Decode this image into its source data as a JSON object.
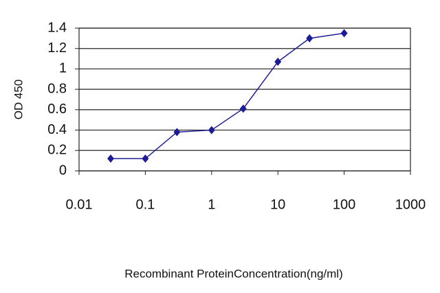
{
  "chart_data": {
    "type": "line",
    "xscale": "log",
    "xlabel": "Recombinant ProteinConcentration(ng/ml)",
    "ylabel": "OD 450",
    "x": [
      0.03,
      0.1,
      0.3,
      1,
      3,
      10,
      30,
      100
    ],
    "series": [
      {
        "name": "OD 450",
        "color": "#1c1c96",
        "values": [
          0.12,
          0.12,
          0.38,
          0.4,
          0.61,
          1.07,
          1.3,
          1.35
        ]
      }
    ],
    "xlim": [
      0.01,
      1000
    ],
    "xticks": [
      0.01,
      0.1,
      1,
      10,
      100,
      1000
    ],
    "ylim": [
      0,
      1.4
    ],
    "yticks": [
      0,
      0.2,
      0.4,
      0.6,
      0.8,
      1,
      1.2,
      1.4
    ],
    "grid": true
  }
}
